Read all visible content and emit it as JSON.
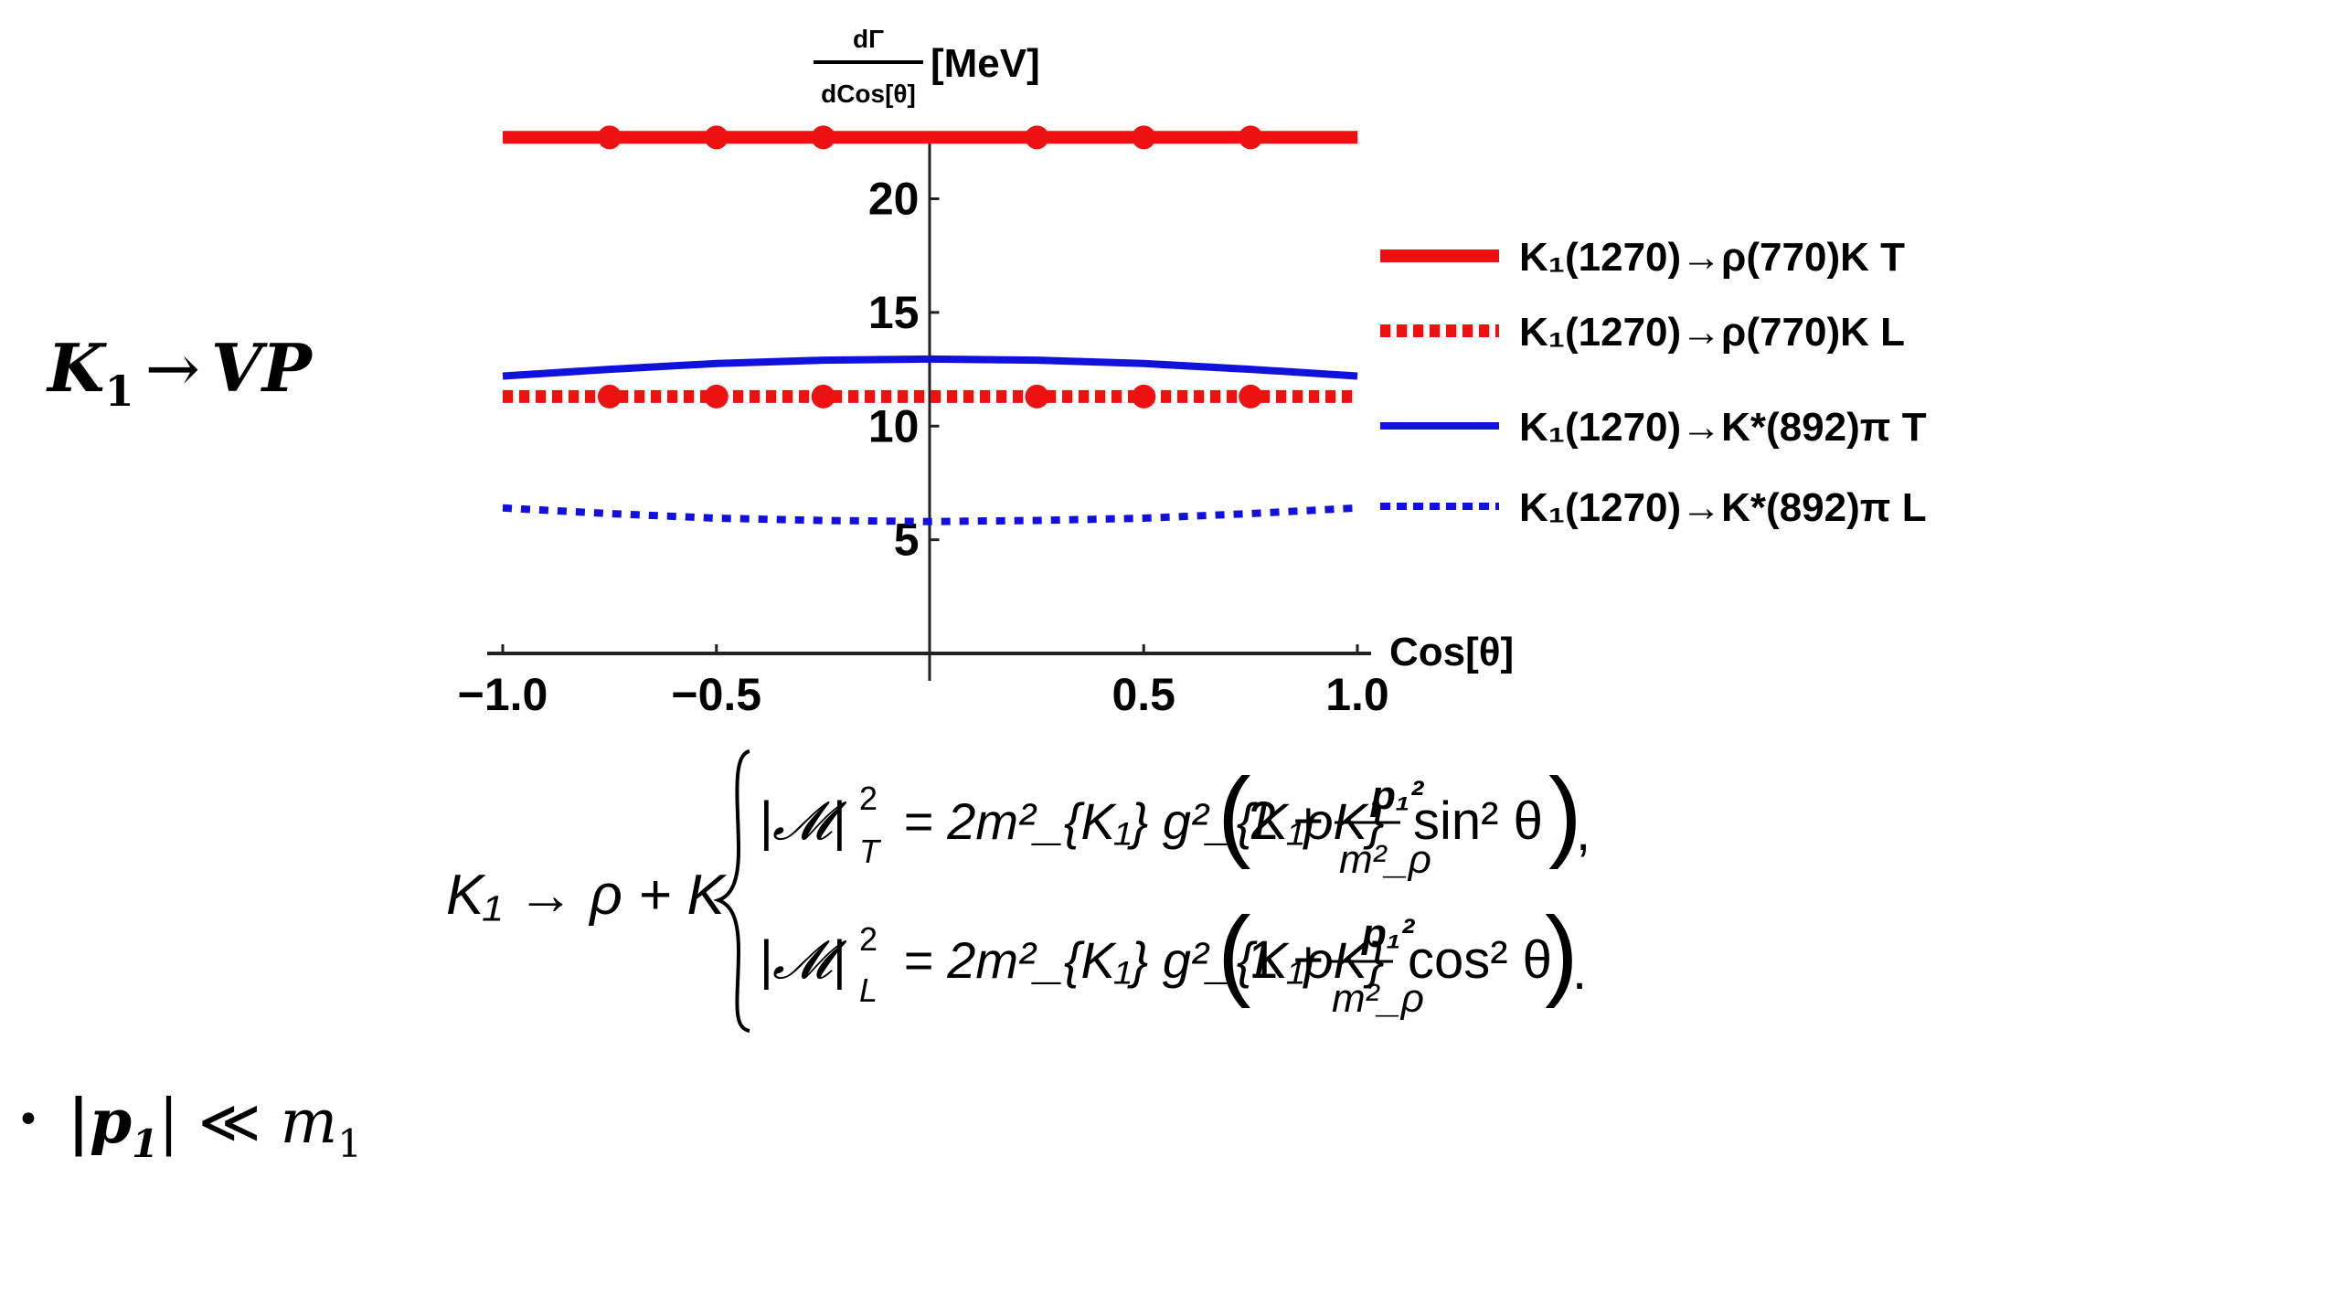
{
  "slide": {
    "heading": {
      "main": "K",
      "sub": "1",
      "arrow": "→",
      "rest": "VP"
    },
    "bullet": {
      "symbol": "•",
      "lhs": "|p",
      "lhs_sub": "1",
      "lhs_close": "|",
      "rel": "≪",
      "rhs": "m",
      "rhs_sub": "1"
    }
  },
  "equation": {
    "lhs": "K₁ → ρ + K",
    "line1": {
      "M": "|𝓜|",
      "sup": "2",
      "sub": "T",
      "mid": "= 2m²_{K₁} g²_{K₁ρK}",
      "paren_open": "(",
      "const": "2 +",
      "num": "p₁²",
      "den": "m²_ρ",
      "trig": "sin² θ",
      "paren_close": ")",
      "end": ","
    },
    "line2": {
      "M": "|𝓜|",
      "sup": "2",
      "sub": "L",
      "mid": "= 2m²_{K₁} g²_{K₁ρK}",
      "paren_open": "(",
      "const": "1 +",
      "num": "p₁²",
      "den": "m²_ρ",
      "trig": "cos² θ",
      "paren_close": ")",
      "end": "."
    }
  },
  "chart_data": {
    "type": "line",
    "ylabel": {
      "num": "dΓ",
      "den": "dCos[θ]",
      "unit": "[MeV]"
    },
    "xlabel": "Cos[θ]",
    "xlim": [
      -1.0,
      1.0
    ],
    "ylim": [
      0,
      24
    ],
    "x_ticks": [
      "−1.0",
      "−0.5",
      "0.5",
      "1.0"
    ],
    "x_tick_values": [
      -1.0,
      -0.5,
      0.5,
      1.0
    ],
    "y_ticks": [
      "5",
      "10",
      "15",
      "20"
    ],
    "y_tick_values": [
      5,
      10,
      15,
      20
    ],
    "grid": false,
    "legend_position": "right",
    "series": [
      {
        "name": "K₁(1270)→ρ(770)K T",
        "color": "#ee1111",
        "style": "solid",
        "markers": true,
        "x": [
          -1.0,
          -0.75,
          -0.5,
          -0.25,
          0.0,
          0.25,
          0.5,
          0.75,
          1.0
        ],
        "y": [
          22.7,
          22.7,
          22.7,
          22.7,
          22.7,
          22.7,
          22.7,
          22.7,
          22.7
        ]
      },
      {
        "name": "K₁(1270)→ρ(770)K L",
        "color": "#ee1111",
        "style": "dotted",
        "markers": true,
        "x": [
          -1.0,
          -0.75,
          -0.5,
          -0.25,
          0.0,
          0.25,
          0.5,
          0.75,
          1.0
        ],
        "y": [
          11.3,
          11.3,
          11.3,
          11.3,
          11.3,
          11.3,
          11.3,
          11.3,
          11.3
        ]
      },
      {
        "name": "K₁(1270)→K*(892)π T",
        "color": "#1111dd",
        "style": "solid",
        "markers": false,
        "x": [
          -1.0,
          -0.75,
          -0.5,
          -0.25,
          0.0,
          0.25,
          0.5,
          0.75,
          1.0
        ],
        "y": [
          12.2,
          12.5,
          12.75,
          12.9,
          12.95,
          12.9,
          12.75,
          12.5,
          12.2
        ]
      },
      {
        "name": "K₁(1270)→K*(892)π L",
        "color": "#1111dd",
        "style": "dotted",
        "markers": false,
        "x": [
          -1.0,
          -0.75,
          -0.5,
          -0.25,
          0.0,
          0.25,
          0.5,
          0.75,
          1.0
        ],
        "y": [
          6.4,
          6.15,
          5.95,
          5.85,
          5.8,
          5.85,
          5.95,
          6.15,
          6.4
        ]
      }
    ]
  }
}
